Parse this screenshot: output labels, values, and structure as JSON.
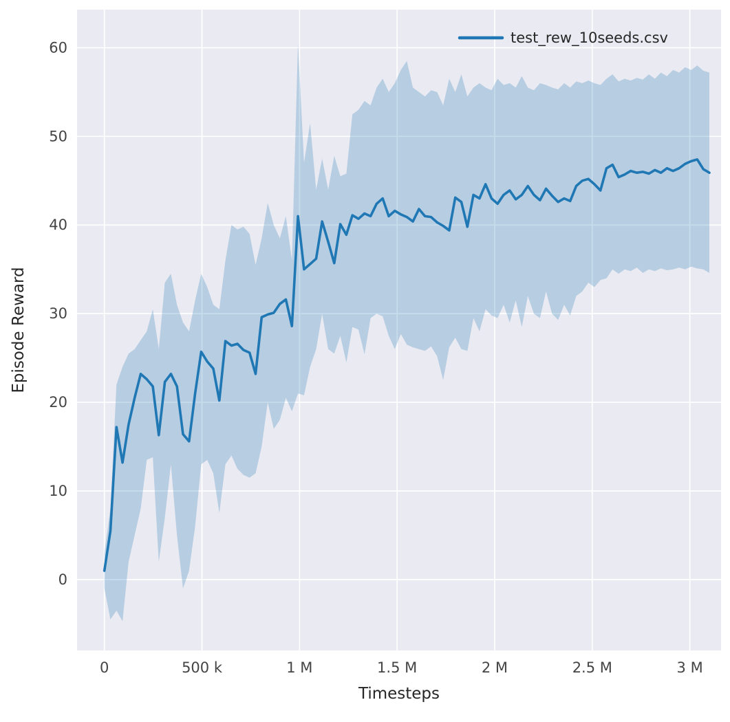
{
  "figure": {
    "background": "#ffffff",
    "plot_background": "#eaeaf2",
    "grid_color": "#ffffff",
    "label_color": "#262626",
    "tick_color": "#444444"
  },
  "chart_data": {
    "type": "line",
    "title": "",
    "xlabel": "Timesteps",
    "ylabel": "Episode Reward",
    "grid": true,
    "legend_position": "upper right",
    "xlim": [
      -140000,
      3160000
    ],
    "ylim": [
      -8,
      64.3
    ],
    "xticks": [
      0,
      500000,
      1000000,
      1500000,
      2000000,
      2500000,
      3000000
    ],
    "xtick_labels": [
      "0",
      "500 k",
      "1 M",
      "1.5 M",
      "2 M",
      "2.5 M",
      "3 M"
    ],
    "yticks": [
      0,
      10,
      20,
      30,
      40,
      50,
      60
    ],
    "ytick_labels": [
      "0",
      "10",
      "20",
      "30",
      "40",
      "50",
      "60"
    ],
    "series": [
      {
        "name": "test_rew_10seeds.csv",
        "color": "#1f77b4",
        "band_color": "#1f77b4",
        "band_opacity": 0.25,
        "x": [
          0,
          31000,
          62000,
          93000,
          124000,
          155000,
          186000,
          217000,
          248000,
          279000,
          310000,
          341000,
          372000,
          403000,
          434000,
          465000,
          496000,
          527000,
          558000,
          589000,
          620000,
          651000,
          682000,
          713000,
          744000,
          775000,
          806000,
          837000,
          868000,
          899000,
          930000,
          961000,
          992000,
          1023000,
          1054000,
          1085000,
          1116000,
          1147000,
          1178000,
          1209000,
          1240000,
          1271000,
          1302000,
          1333000,
          1364000,
          1395000,
          1426000,
          1457000,
          1488000,
          1519000,
          1550000,
          1581000,
          1612000,
          1643000,
          1674000,
          1705000,
          1736000,
          1767000,
          1798000,
          1829000,
          1860000,
          1891000,
          1922000,
          1953000,
          1984000,
          2015000,
          2046000,
          2077000,
          2108000,
          2139000,
          2170000,
          2201000,
          2232000,
          2263000,
          2294000,
          2325000,
          2356000,
          2387000,
          2418000,
          2449000,
          2480000,
          2511000,
          2542000,
          2573000,
          2604000,
          2635000,
          2666000,
          2697000,
          2728000,
          2759000,
          2790000,
          2821000,
          2852000,
          2883000,
          2914000,
          2945000,
          2976000,
          3007000,
          3038000,
          3069000,
          3100000
        ],
        "mean": [
          1.0,
          5.5,
          17.2,
          13.2,
          17.5,
          20.5,
          23.2,
          22.6,
          21.8,
          16.3,
          22.3,
          23.2,
          21.8,
          16.4,
          15.6,
          21.0,
          25.7,
          24.6,
          23.8,
          20.2,
          26.9,
          26.4,
          26.6,
          25.9,
          25.6,
          23.2,
          29.6,
          29.9,
          30.1,
          31.1,
          31.6,
          28.6,
          41.0,
          35.0,
          35.6,
          36.2,
          40.4,
          38.1,
          35.7,
          40.1,
          38.9,
          41.1,
          40.7,
          41.3,
          41.0,
          42.4,
          43.0,
          41.0,
          41.6,
          41.2,
          40.9,
          40.4,
          41.8,
          41.0,
          40.9,
          40.3,
          39.9,
          39.4,
          43.1,
          42.6,
          39.8,
          43.4,
          43.0,
          44.6,
          43.0,
          42.4,
          43.4,
          43.9,
          42.9,
          43.4,
          44.4,
          43.4,
          42.8,
          44.1,
          43.3,
          42.6,
          43.0,
          42.7,
          44.4,
          45.0,
          45.2,
          44.6,
          43.9,
          46.4,
          46.8,
          45.4,
          45.7,
          46.1,
          45.9,
          46.0,
          45.8,
          46.2,
          45.9,
          46.4,
          46.1,
          46.4,
          46.9,
          47.2,
          47.4,
          46.3,
          45.9
        ],
        "lower": [
          -1.0,
          -4.5,
          -3.5,
          -4.7,
          2.0,
          5.0,
          8.0,
          13.5,
          13.8,
          2.0,
          7.0,
          13.0,
          5.0,
          -1.0,
          1.0,
          6.0,
          13.0,
          13.5,
          12.0,
          7.5,
          13.0,
          14.0,
          12.5,
          11.8,
          11.5,
          12.0,
          15.0,
          20.0,
          17.0,
          18.0,
          20.5,
          19.0,
          21.0,
          20.8,
          24.0,
          26.0,
          30.0,
          26.0,
          25.5,
          27.5,
          24.5,
          28.5,
          28.2,
          25.4,
          29.5,
          30.0,
          29.7,
          27.5,
          26.0,
          27.7,
          26.5,
          26.2,
          26.0,
          25.8,
          26.3,
          25.2,
          22.5,
          26.2,
          27.3,
          26.0,
          25.8,
          29.5,
          28.0,
          30.5,
          29.8,
          29.5,
          31.0,
          29.0,
          31.5,
          28.5,
          32.0,
          30.0,
          29.5,
          32.5,
          30.0,
          29.3,
          31.0,
          29.8,
          32.0,
          32.5,
          33.5,
          33.0,
          33.8,
          34.0,
          35.0,
          34.5,
          35.0,
          34.8,
          35.2,
          34.6,
          35.0,
          34.8,
          35.1,
          34.9,
          35.0,
          35.2,
          35.0,
          35.3,
          35.1,
          35.0,
          34.6
        ],
        "upper": [
          3.0,
          8.0,
          22.0,
          24.0,
          25.5,
          26.0,
          27.0,
          28.0,
          30.5,
          26.0,
          33.5,
          34.5,
          31.0,
          29.0,
          28.0,
          31.5,
          34.5,
          33.0,
          31.0,
          30.5,
          36.0,
          40.0,
          39.5,
          39.8,
          39.0,
          35.5,
          38.5,
          42.5,
          40.0,
          38.5,
          41.0,
          36.0,
          60.5,
          47.0,
          51.5,
          44.0,
          47.5,
          44.0,
          47.8,
          45.5,
          45.8,
          52.5,
          53.0,
          54.0,
          53.5,
          55.5,
          56.5,
          55.0,
          56.0,
          57.5,
          58.5,
          55.5,
          55.0,
          54.5,
          55.2,
          55.0,
          53.5,
          56.5,
          55.0,
          57.0,
          54.5,
          55.5,
          56.0,
          55.5,
          55.2,
          56.5,
          55.8,
          56.0,
          55.5,
          56.8,
          55.5,
          55.2,
          56.0,
          55.8,
          55.5,
          55.3,
          56.0,
          55.5,
          56.2,
          56.0,
          56.3,
          56.0,
          55.8,
          56.5,
          57.0,
          56.2,
          56.5,
          56.3,
          56.6,
          56.4,
          57.0,
          56.5,
          57.2,
          56.8,
          57.5,
          57.2,
          57.8,
          57.5,
          58.0,
          57.4,
          57.2
        ]
      }
    ]
  }
}
